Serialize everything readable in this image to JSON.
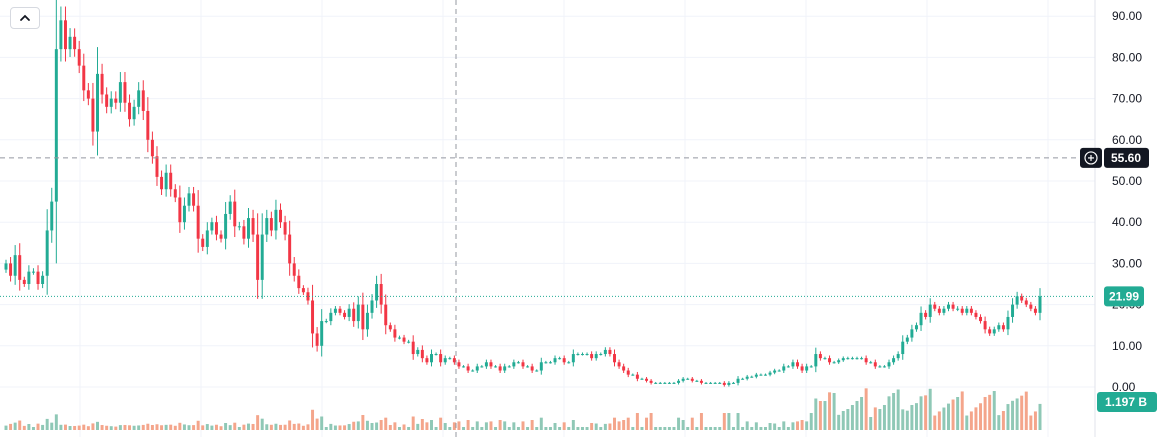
{
  "toolbar": {
    "collapse_icon": "chevron-up-icon"
  },
  "crosshair": {
    "price_label": "55.60",
    "add_icon": "plus-circle-icon",
    "y": 55.6
  },
  "last_price": {
    "label": "21.99",
    "value": 21.99
  },
  "volume_badge": {
    "label": "1.197 B"
  },
  "colors": {
    "up": "#22ab94",
    "down": "#f23645",
    "vol_up": "#8fc8b6",
    "vol_down": "#f4a58b",
    "badge_price": "#22ab94",
    "badge_cross": "#131722"
  },
  "chart_data": {
    "type": "candlestick",
    "y_axis": {
      "ticks": [
        "90.00",
        "80.00",
        "70.00",
        "60.00",
        "50.00",
        "40.00",
        "30.00",
        "20.00",
        "10.00",
        "0.00"
      ],
      "range": [
        -3,
        95
      ]
    },
    "grid": true,
    "close": [
      30,
      27,
      32,
      26,
      25,
      28,
      28,
      25,
      27,
      38,
      45,
      82,
      89,
      82,
      85,
      82,
      78,
      72,
      70,
      62,
      76,
      71,
      68,
      70,
      69,
      74,
      69,
      65,
      68,
      72,
      67,
      60,
      56,
      51,
      48,
      52,
      48,
      46,
      40,
      44,
      47,
      44,
      36,
      34,
      38,
      40,
      37,
      36,
      42,
      45,
      39,
      39,
      36,
      41,
      37,
      26,
      37,
      41,
      38,
      43,
      40,
      37,
      30,
      27,
      24,
      23,
      21,
      13,
      10,
      16,
      16,
      18,
      19,
      18,
      17,
      19,
      16,
      20,
      14,
      18,
      21,
      25,
      20,
      15,
      14,
      12,
      12,
      11,
      11,
      8,
      9,
      7,
      6,
      8,
      8,
      6,
      7,
      7,
      6,
      5,
      5,
      4,
      4,
      5,
      5,
      6,
      5,
      5,
      4,
      5,
      5,
      6,
      6,
      5,
      5,
      4,
      4,
      6,
      6,
      6,
      7,
      7,
      6,
      6,
      8,
      8,
      8,
      8,
      7,
      8,
      8,
      9,
      8,
      6,
      5,
      4,
      3,
      3,
      2,
      2,
      1.5,
      1,
      1,
      1,
      1,
      1,
      1,
      1.5,
      2,
      2,
      1.5,
      1.5,
      1,
      1,
      1,
      1,
      1,
      0.5,
      1,
      1,
      2,
      2,
      2.5,
      2.5,
      3,
      3,
      3,
      3.5,
      4,
      4,
      5,
      5,
      6,
      5,
      4,
      5,
      5,
      8,
      7,
      7,
      6,
      6,
      6.5,
      7,
      7,
      7,
      7,
      7,
      6,
      6,
      5,
      5,
      5,
      6,
      7,
      8,
      11,
      12,
      14,
      15,
      18,
      17,
      20,
      19,
      18,
      19,
      20,
      19,
      19,
      18,
      19,
      18,
      17,
      16,
      14,
      13,
      14,
      15,
      14,
      17,
      20,
      22,
      21,
      20,
      19,
      18,
      22
    ]
  }
}
